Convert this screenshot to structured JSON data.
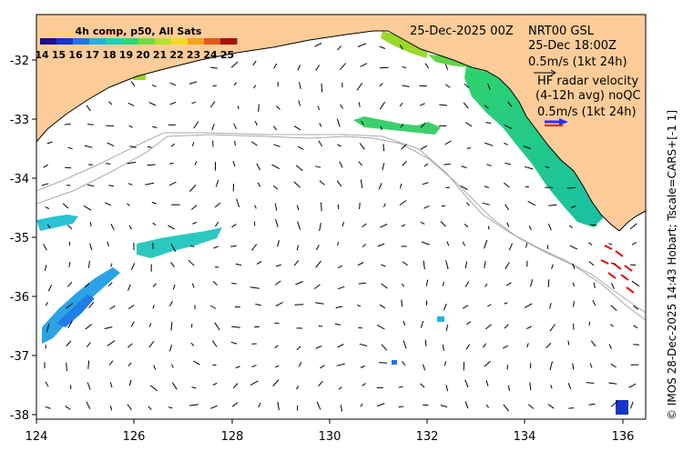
{
  "map": {
    "colorbar_title": "4h comp, p50, All Sats",
    "colorbar_ticks": [
      "14",
      "15",
      "16",
      "17",
      "18",
      "19",
      "20",
      "21",
      "22",
      "23",
      "24",
      "25"
    ],
    "colorbar_colors": [
      "#1a0f8f",
      "#1536c9",
      "#1f74e6",
      "#22b1e0",
      "#20d1b8",
      "#2ad97a",
      "#6edc3a",
      "#b5e02a",
      "#f2d91e",
      "#f5a21c",
      "#e6561a",
      "#a80f0f"
    ],
    "date_label": "25-Dec-2025 00Z",
    "nrt_label": "NRT00 GSL",
    "nrt_time": "25-Dec 18:00Z",
    "nrt_scale": "0.5m/s (1kt 24h)",
    "hf_line1": "HF radar velocity",
    "hf_line2": "(4-12h avg) noQC",
    "hf_scale": "0.5m/s (1kt 24h)",
    "credit": "© IMOS 28-Dec-2025 14:43 Hobart; Tscale=CARS+[-1 1]",
    "lon_ticks": [
      "124",
      "126",
      "128",
      "130",
      "132",
      "134",
      "136"
    ],
    "lat_ticks": [
      "-32",
      "-33",
      "-34",
      "-35",
      "-36",
      "-37",
      "-38"
    ],
    "colors": {
      "land": "#fdcc99",
      "ocean": "#ffffff",
      "isobath": "#a9a9a9",
      "hf_arrow": "#e00000",
      "scale_arrow_blue": "#1a35ff",
      "scale_arrow_red": "#ff0000"
    }
  }
}
